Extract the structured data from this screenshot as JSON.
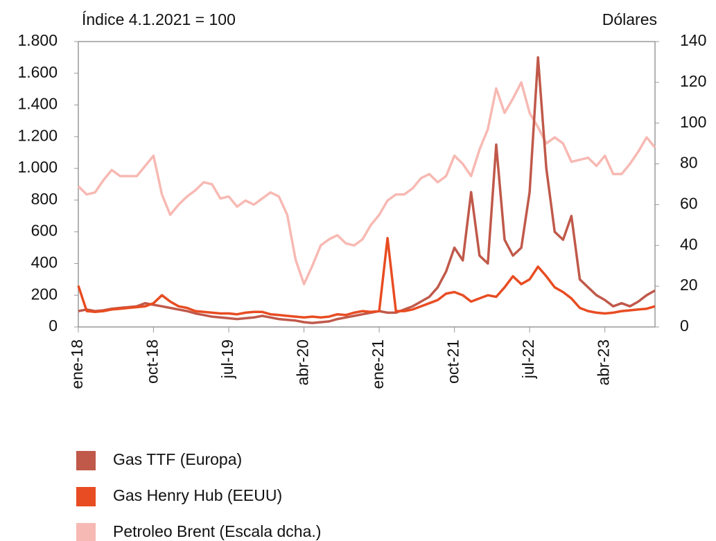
{
  "chart_data": {
    "type": "line",
    "y_label": "Índice 4.1.2021 = 100",
    "y2_label": "Dólares",
    "x": [
      "2018-01",
      "2018-02",
      "2018-03",
      "2018-04",
      "2018-05",
      "2018-06",
      "2018-07",
      "2018-08",
      "2018-09",
      "2018-10",
      "2018-11",
      "2018-12",
      "2019-01",
      "2019-02",
      "2019-03",
      "2019-04",
      "2019-05",
      "2019-06",
      "2019-07",
      "2019-08",
      "2019-09",
      "2019-10",
      "2019-11",
      "2019-12",
      "2020-01",
      "2020-02",
      "2020-03",
      "2020-04",
      "2020-05",
      "2020-06",
      "2020-07",
      "2020-08",
      "2020-09",
      "2020-10",
      "2020-11",
      "2020-12",
      "2021-01",
      "2021-02",
      "2021-03",
      "2021-04",
      "2021-05",
      "2021-06",
      "2021-07",
      "2021-08",
      "2021-09",
      "2021-10",
      "2021-11",
      "2021-12",
      "2022-01",
      "2022-02",
      "2022-03",
      "2022-04",
      "2022-05",
      "2022-06",
      "2022-07",
      "2022-08",
      "2022-09",
      "2022-10",
      "2022-11",
      "2022-12",
      "2023-01",
      "2023-02",
      "2023-03",
      "2023-04",
      "2023-05",
      "2023-06",
      "2023-07",
      "2023-08",
      "2023-09",
      "2023-10"
    ],
    "xlim": [
      "2018-01",
      "2023-10"
    ],
    "xticks": [
      {
        "value": "2018-01",
        "label": "ene-18"
      },
      {
        "value": "2018-10",
        "label": "oct-18"
      },
      {
        "value": "2019-07",
        "label": "jul-19"
      },
      {
        "value": "2020-04",
        "label": "abr-20"
      },
      {
        "value": "2021-01",
        "label": "ene-21"
      },
      {
        "value": "2021-10",
        "label": "oct-21"
      },
      {
        "value": "2022-07",
        "label": "jul-22"
      },
      {
        "value": "2023-04",
        "label": "abr-23"
      }
    ],
    "ylim": [
      0,
      1800
    ],
    "yticks": [
      0,
      200,
      400,
      600,
      800,
      {
        "value": 1000,
        "label": "1.000"
      },
      {
        "value": 1200,
        "label": "1.200"
      },
      {
        "value": 1400,
        "label": "1.400"
      },
      {
        "value": 1600,
        "label": "1.600"
      },
      {
        "value": 1800,
        "label": "1.800"
      }
    ],
    "y2lim": [
      0,
      140
    ],
    "y2ticks": [
      0,
      20,
      40,
      60,
      80,
      100,
      120,
      140
    ],
    "series": [
      {
        "name": "Petroleo Brent (Escala dcha.)",
        "color": "#f7b9b3",
        "axis": "y2",
        "values": [
          69,
          65,
          66,
          72,
          77,
          74,
          74,
          74,
          79,
          84,
          65,
          55,
          60,
          64,
          67,
          71,
          70,
          63,
          64,
          59,
          62,
          60,
          63,
          66,
          64,
          55,
          33,
          21,
          30,
          40,
          43,
          45,
          41,
          40,
          43,
          50,
          55,
          62,
          65,
          65,
          68,
          73,
          75,
          71,
          74,
          84,
          80,
          74,
          87,
          97,
          117,
          105,
          112,
          120,
          105,
          98,
          90,
          93,
          90,
          81,
          82,
          83,
          79,
          84,
          75,
          75,
          80,
          86,
          93,
          88
        ]
      },
      {
        "name": "Gas TTF (Europa)",
        "color": "#c0594a",
        "values": [
          100,
          110,
          100,
          105,
          115,
          120,
          125,
          130,
          150,
          140,
          130,
          120,
          110,
          100,
          85,
          75,
          65,
          60,
          55,
          50,
          55,
          60,
          70,
          60,
          50,
          45,
          40,
          30,
          25,
          30,
          35,
          50,
          60,
          70,
          80,
          90,
          100,
          90,
          90,
          110,
          130,
          160,
          190,
          250,
          350,
          500,
          420,
          850,
          450,
          400,
          1150,
          550,
          450,
          500,
          850,
          1700,
          1000,
          600,
          550,
          700,
          300,
          250,
          200,
          170,
          130,
          150,
          130,
          160,
          200,
          230
        ]
      },
      {
        "name": "Gas Henry Hub (EEUU)",
        "color": "#e84c22",
        "values": [
          260,
          100,
          95,
          100,
          110,
          115,
          120,
          125,
          130,
          150,
          200,
          160,
          130,
          120,
          100,
          95,
          90,
          85,
          85,
          80,
          90,
          95,
          95,
          80,
          75,
          70,
          65,
          60,
          65,
          60,
          65,
          80,
          75,
          90,
          100,
          95,
          100,
          560,
          100,
          100,
          110,
          130,
          150,
          170,
          210,
          220,
          200,
          160,
          180,
          200,
          190,
          250,
          320,
          270,
          300,
          380,
          320,
          250,
          220,
          180,
          120,
          100,
          90,
          85,
          90,
          100,
          105,
          110,
          115,
          130
        ]
      }
    ]
  }
}
